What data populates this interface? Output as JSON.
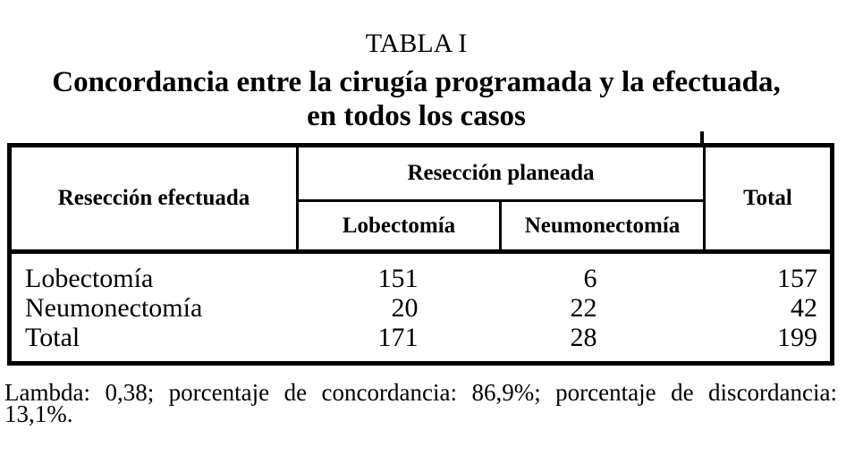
{
  "colors": {
    "background": "#ffffff",
    "text": "#000000",
    "border": "#000000"
  },
  "caption": "TABLA I",
  "subtitle_lines": [
    "Concordancia entre la cirugía programada y la efectuada,",
    "en todos los casos"
  ],
  "table": {
    "header": {
      "effected_label": "Resección efectuada",
      "planned_group_label": "Resección planeada",
      "planned_col_lobectomy": "Lobectomía",
      "planned_col_pneumonectomy": "Neumonectomía",
      "total_label": "Total"
    },
    "rows": [
      {
        "label": "Lobectomía",
        "planned_lobectomy": "151",
        "planned_pneumonectomy": "6",
        "total": "157"
      },
      {
        "label": "Neumonectomía",
        "planned_lobectomy": "20",
        "planned_pneumonectomy": "22",
        "total": "42"
      },
      {
        "label": "Total",
        "planned_lobectomy": "171",
        "planned_pneumonectomy": "28",
        "total": "199"
      }
    ]
  },
  "footnote": {
    "line_1": "Lambda: 0,38; porcentaje de concordancia: 86,9%; porcentaje de discordancia:",
    "line_2": "13,1%."
  }
}
